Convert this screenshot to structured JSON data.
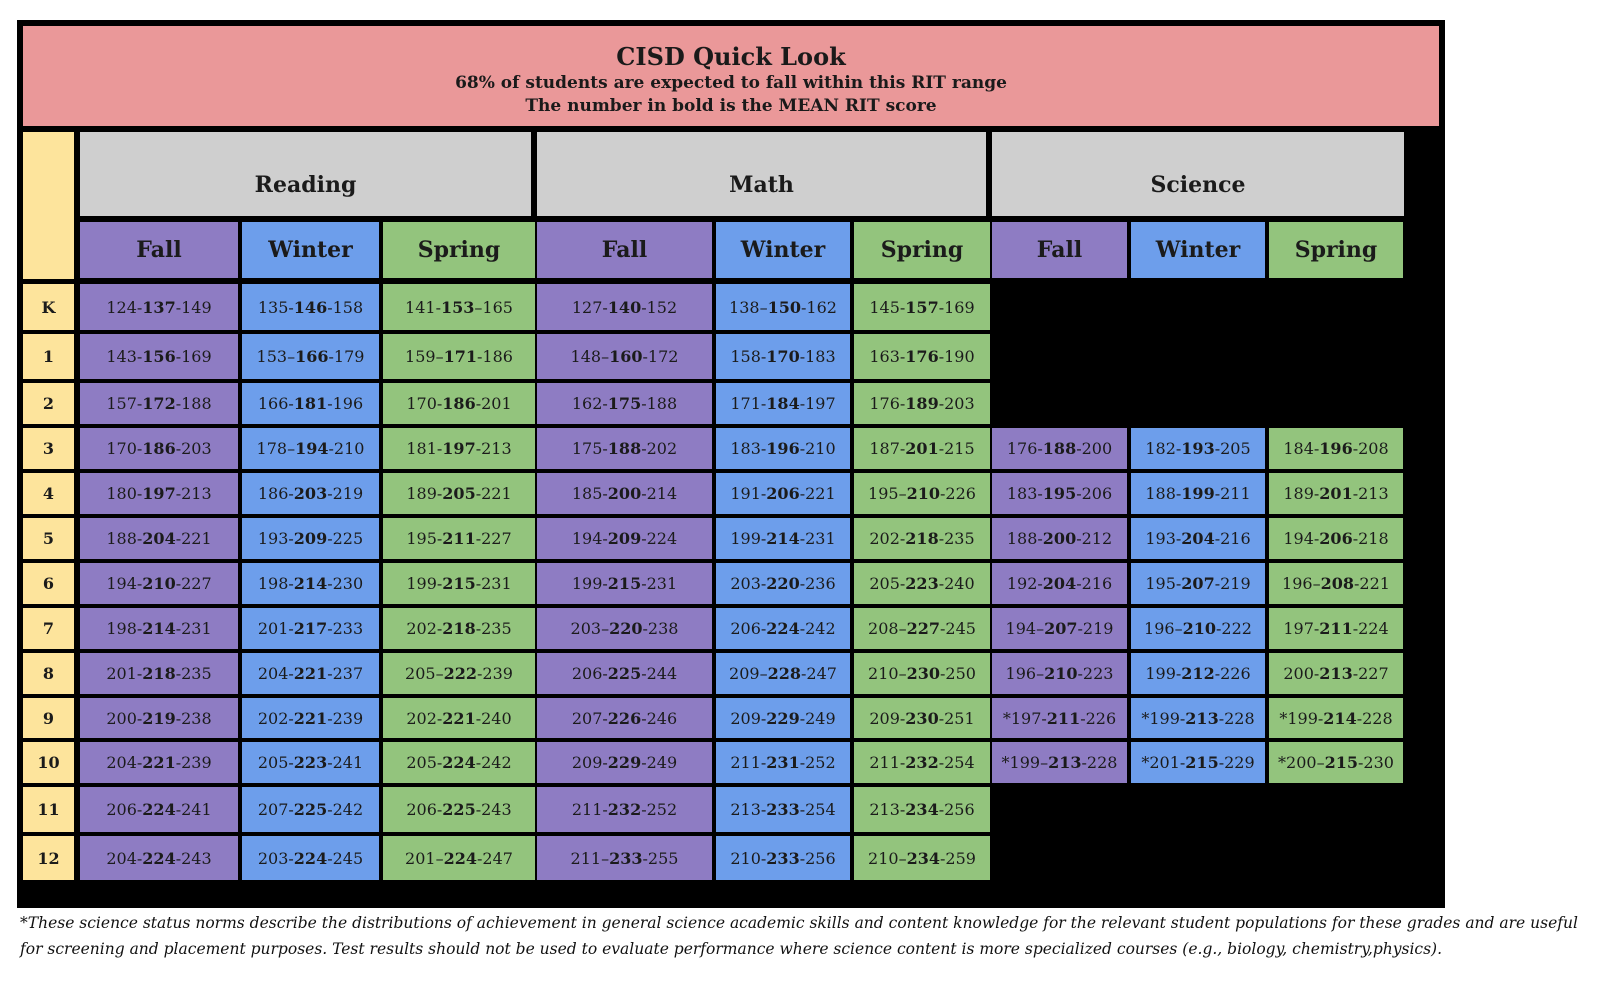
{
  "header": {
    "title": "CISD Quick Look",
    "line1": "68% of students are expected to fall within this RIT range",
    "line2": "The number in bold is the MEAN RIT score"
  },
  "subjects": [
    "Reading",
    "Math",
    "Science"
  ],
  "terms": [
    "Fall",
    "Winter",
    "Spring"
  ],
  "colors": {
    "fall": "#8e7cc3",
    "winter": "#6d9eeb",
    "spring": "#93c47d",
    "grade": "#fde49c",
    "banner": "#ea9899",
    "subject_header": "#cfcfcf"
  },
  "rows": [
    {
      "grade": "K",
      "cells": [
        [
          "124-",
          "137",
          "-149"
        ],
        [
          "135-",
          "146",
          "-158"
        ],
        [
          "141-",
          "153",
          "–165"
        ],
        [
          "127-",
          "140",
          "-152"
        ],
        [
          "138–",
          "150",
          "-162"
        ],
        [
          "145-",
          "157",
          "-169"
        ],
        null,
        null,
        null
      ]
    },
    {
      "grade": "1",
      "cells": [
        [
          "143-",
          "156",
          "-169"
        ],
        [
          "153–",
          "166",
          "-179"
        ],
        [
          "159–",
          "171",
          "-186"
        ],
        [
          "148–",
          "160",
          "-172"
        ],
        [
          "158-",
          "170",
          "-183"
        ],
        [
          "163-",
          "176",
          "-190"
        ],
        null,
        null,
        null
      ]
    },
    {
      "grade": "2",
      "cells": [
        [
          "157-",
          "172",
          "-188"
        ],
        [
          "166-",
          "181",
          "-196"
        ],
        [
          "170-",
          "186",
          "-201"
        ],
        [
          "162-",
          "175",
          "-188"
        ],
        [
          "171-",
          "184",
          "-197"
        ],
        [
          "176-",
          "189",
          "-203"
        ],
        null,
        null,
        null
      ]
    },
    {
      "grade": "3",
      "cells": [
        [
          "170-",
          "186",
          "-203"
        ],
        [
          "178–",
          "194",
          "-210"
        ],
        [
          "181-",
          "197",
          "-213"
        ],
        [
          "175-",
          "188",
          "-202"
        ],
        [
          "183-",
          "196",
          "-210"
        ],
        [
          "187-",
          "201",
          "-215"
        ],
        [
          "176-",
          "188",
          "-200"
        ],
        [
          "182-",
          "193",
          "-205"
        ],
        [
          "184-",
          "196",
          "-208"
        ]
      ]
    },
    {
      "grade": "4",
      "cells": [
        [
          "180-",
          "197",
          "-213"
        ],
        [
          "186-",
          "203",
          "-219"
        ],
        [
          "189-",
          "205",
          "-221"
        ],
        [
          "185-",
          "200",
          "-214"
        ],
        [
          "191-",
          "206",
          "-221"
        ],
        [
          "195–",
          "210",
          "-226"
        ],
        [
          "183-",
          "195",
          "-206"
        ],
        [
          "188-",
          "199",
          "-211"
        ],
        [
          "189-",
          "201",
          "-213"
        ]
      ]
    },
    {
      "grade": "5",
      "cells": [
        [
          "188-",
          "204",
          "-221"
        ],
        [
          "193-",
          "209",
          "-225"
        ],
        [
          "195-",
          "211",
          "-227"
        ],
        [
          "194-",
          "209",
          "-224"
        ],
        [
          "199-",
          "214",
          "-231"
        ],
        [
          "202-",
          "218",
          "-235"
        ],
        [
          "188-",
          "200",
          "-212"
        ],
        [
          "193-",
          "204",
          "-216"
        ],
        [
          "194-",
          "206",
          "-218"
        ]
      ]
    },
    {
      "grade": "6",
      "cells": [
        [
          "194-",
          "210",
          "-227"
        ],
        [
          "198-",
          "214",
          "-230"
        ],
        [
          "199-",
          "215",
          "-231"
        ],
        [
          "199-",
          "215",
          "-231"
        ],
        [
          "203-",
          "220",
          "-236"
        ],
        [
          "205-",
          "223",
          "-240"
        ],
        [
          "192-",
          "204",
          "-216"
        ],
        [
          "195-",
          "207",
          "-219"
        ],
        [
          "196–",
          "208",
          "-221"
        ]
      ]
    },
    {
      "grade": "7",
      "cells": [
        [
          "198-",
          "214",
          "-231"
        ],
        [
          "201-",
          "217",
          "-233"
        ],
        [
          "202-",
          "218",
          "-235"
        ],
        [
          "203–",
          "220",
          "-238"
        ],
        [
          "206-",
          "224",
          "-242"
        ],
        [
          "208–",
          "227",
          "-245"
        ],
        [
          "194–",
          "207",
          "-219"
        ],
        [
          "196–",
          "210",
          "-222"
        ],
        [
          "197-",
          "211",
          "-224"
        ]
      ]
    },
    {
      "grade": "8",
      "cells": [
        [
          "201-",
          "218",
          "-235"
        ],
        [
          "204-",
          "221",
          "-237"
        ],
        [
          "205–",
          "222",
          "-239"
        ],
        [
          "206-",
          "225",
          "-244"
        ],
        [
          "209–",
          "228",
          "-247"
        ],
        [
          "210–",
          "230",
          "-250"
        ],
        [
          "196–",
          "210",
          "-223"
        ],
        [
          "199-",
          "212",
          "-226"
        ],
        [
          "200-",
          "213",
          "-227"
        ]
      ]
    },
    {
      "grade": "9",
      "cells": [
        [
          "200-",
          "219",
          "-238"
        ],
        [
          "202-",
          "221",
          "-239"
        ],
        [
          "202-",
          "221",
          "-240"
        ],
        [
          "207-",
          "226",
          "-246"
        ],
        [
          "209-",
          "229",
          "-249"
        ],
        [
          "209-",
          "230",
          "-251"
        ],
        [
          "*197-",
          "211",
          "-226"
        ],
        [
          "*199-",
          "213",
          "-228"
        ],
        [
          "*199-",
          "214",
          "-228"
        ]
      ]
    },
    {
      "grade": "10",
      "cells": [
        [
          "204-",
          "221",
          "-239"
        ],
        [
          "205-",
          "223",
          "-241"
        ],
        [
          "205-",
          "224",
          "-242"
        ],
        [
          "209-",
          "229",
          "-249"
        ],
        [
          "211-",
          "231",
          "-252"
        ],
        [
          "211-",
          "232",
          "-254"
        ],
        [
          "*199–",
          "213",
          "-228"
        ],
        [
          "*201-",
          "215",
          "-229"
        ],
        [
          "*200–",
          "215",
          "-230"
        ]
      ]
    },
    {
      "grade": "11",
      "cells": [
        [
          "206-",
          "224",
          "-241"
        ],
        [
          "207-",
          "225",
          "-242"
        ],
        [
          "206-",
          "225",
          "-243"
        ],
        [
          "211-",
          "232",
          "-252"
        ],
        [
          "213-",
          "233",
          "-254"
        ],
        [
          "213-",
          "234",
          "-256"
        ],
        null,
        null,
        null
      ]
    },
    {
      "grade": "12",
      "cells": [
        [
          "204-",
          "224",
          "-243"
        ],
        [
          "203-",
          "224",
          "-245"
        ],
        [
          "201–",
          "224",
          "-247"
        ],
        [
          "211–",
          "233",
          "-255"
        ],
        [
          "210-",
          "233",
          "-256"
        ],
        [
          "210–",
          "234",
          "-259"
        ],
        null,
        null,
        null
      ]
    }
  ],
  "footnote": "*These science status norms describe the distributions of achievement in general science academic skills and content knowledge for the relevant student populations for these grades and are useful for screening and placement purposes. Test results should not be used to evaluate performance where science content is more specialized courses (e.g., biology, chemistry,physics)."
}
